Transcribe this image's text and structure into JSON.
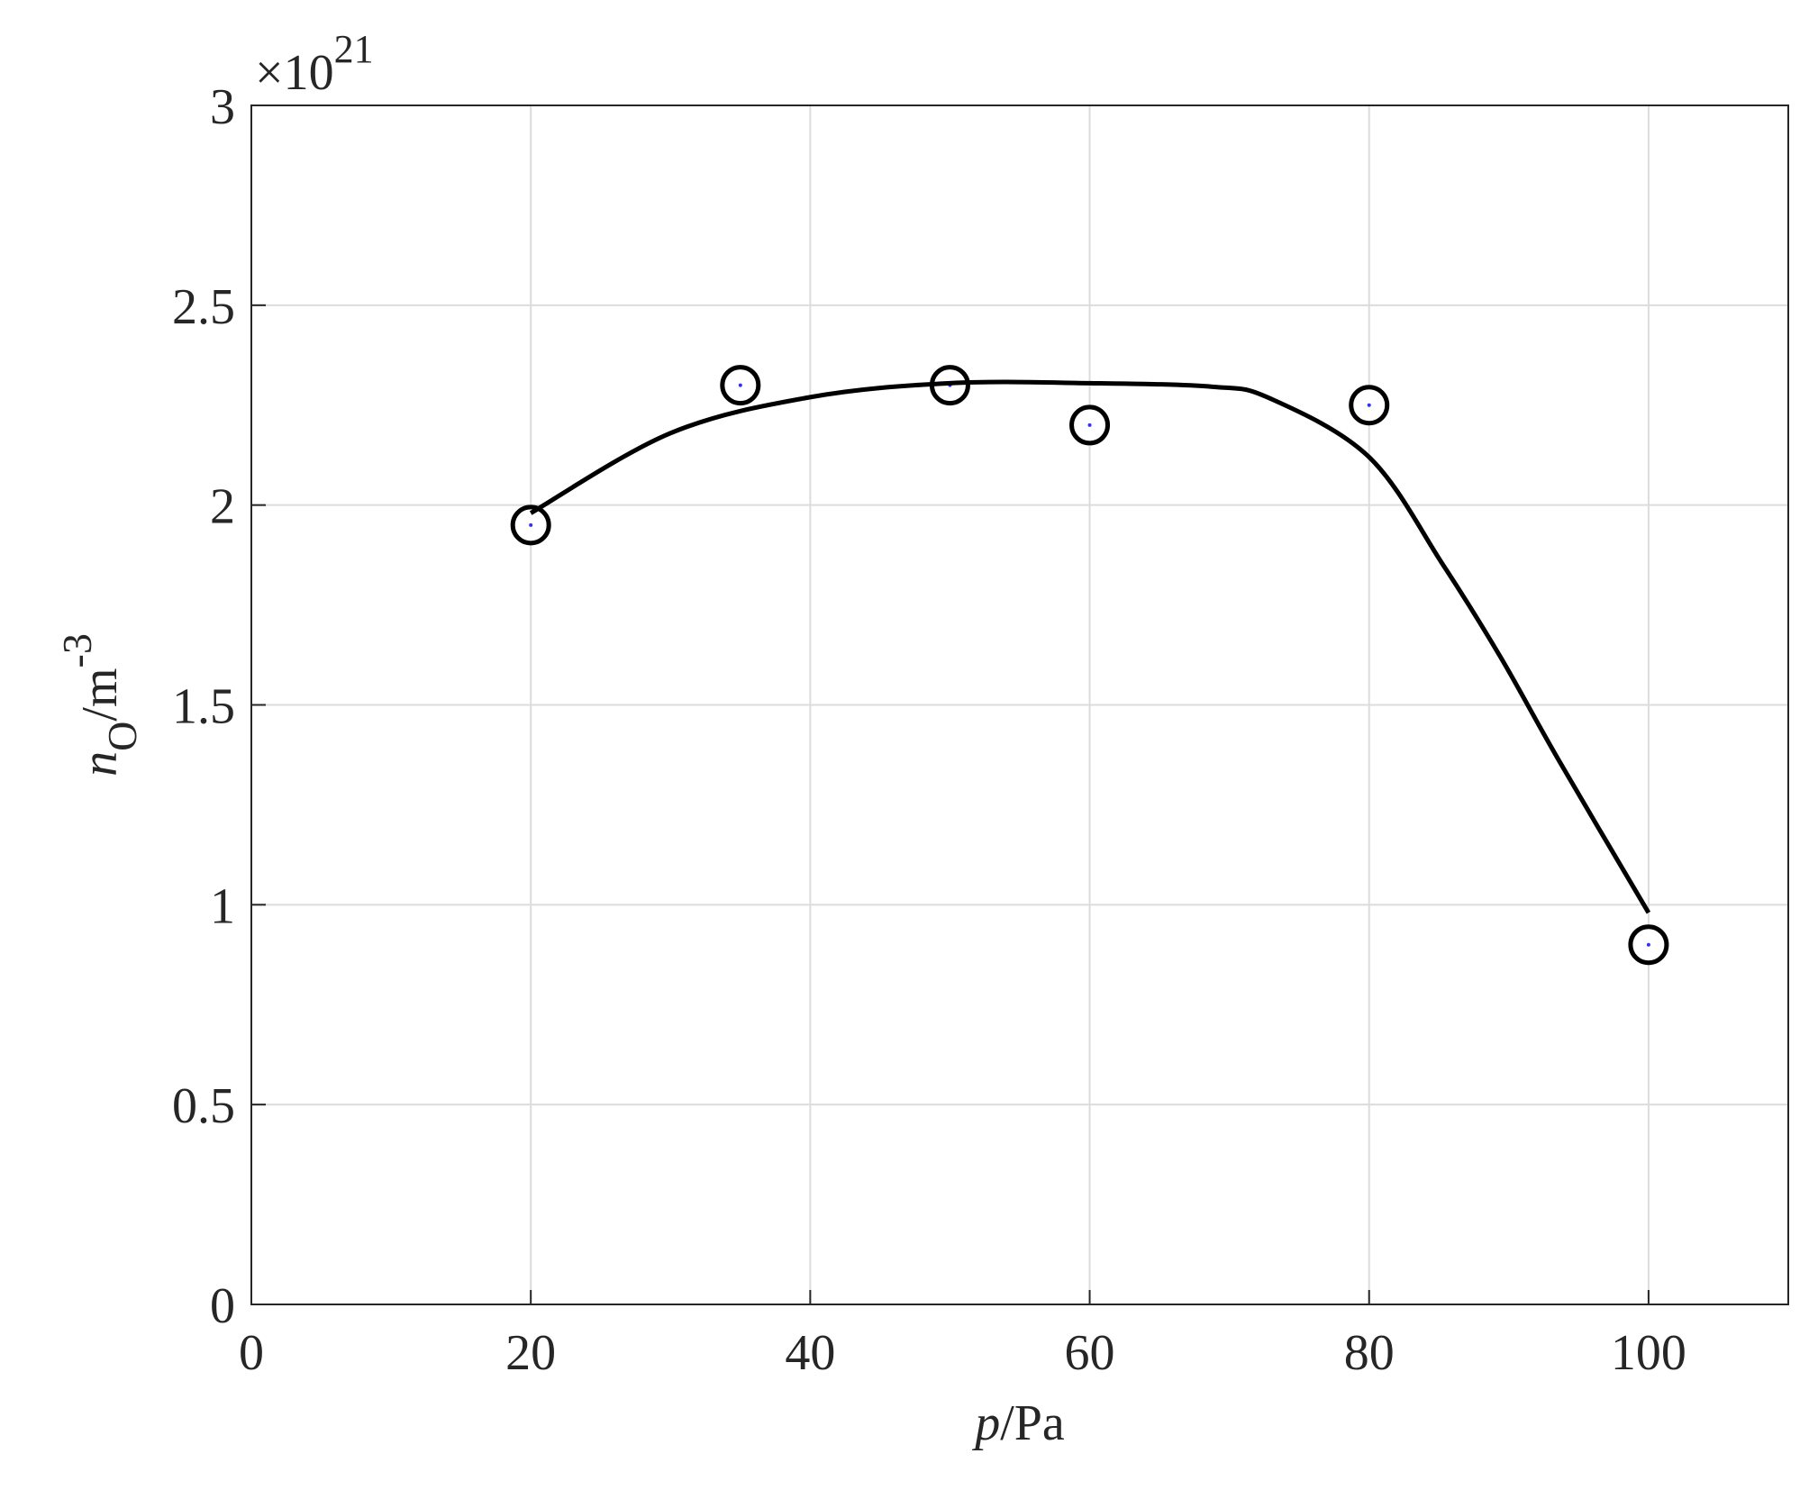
{
  "chart_data": {
    "type": "line",
    "x_label": [
      "p",
      "/Pa"
    ],
    "y_label": [
      "n",
      "O",
      "/m",
      "-3"
    ],
    "y_exponent": [
      "×10",
      "21"
    ],
    "xlim": [
      0,
      110
    ],
    "xticks": [
      0,
      20,
      40,
      60,
      80,
      100
    ],
    "ylim": [
      0,
      3
    ],
    "yticks": [
      0,
      0.5,
      1,
      1.5,
      2,
      2.5,
      3
    ],
    "grid": true,
    "series": [
      {
        "color": "#000000",
        "marker": "circle",
        "line": false,
        "x": [
          20,
          35,
          50,
          60,
          80,
          100
        ],
        "values": [
          1.95,
          2.3,
          2.3,
          2.2,
          2.25,
          0.9
        ]
      },
      {
        "color": "#000000",
        "marker": "none",
        "line": true,
        "x": [
          20,
          30,
          40,
          50,
          60,
          68.8,
          72.9,
          80,
          85.3,
          89.4,
          93.6,
          100
        ],
        "values": [
          1.98,
          2.18,
          2.27,
          2.305,
          2.305,
          2.296,
          2.267,
          2.12,
          1.85,
          1.62,
          1.36,
          0.98
        ]
      }
    ]
  }
}
